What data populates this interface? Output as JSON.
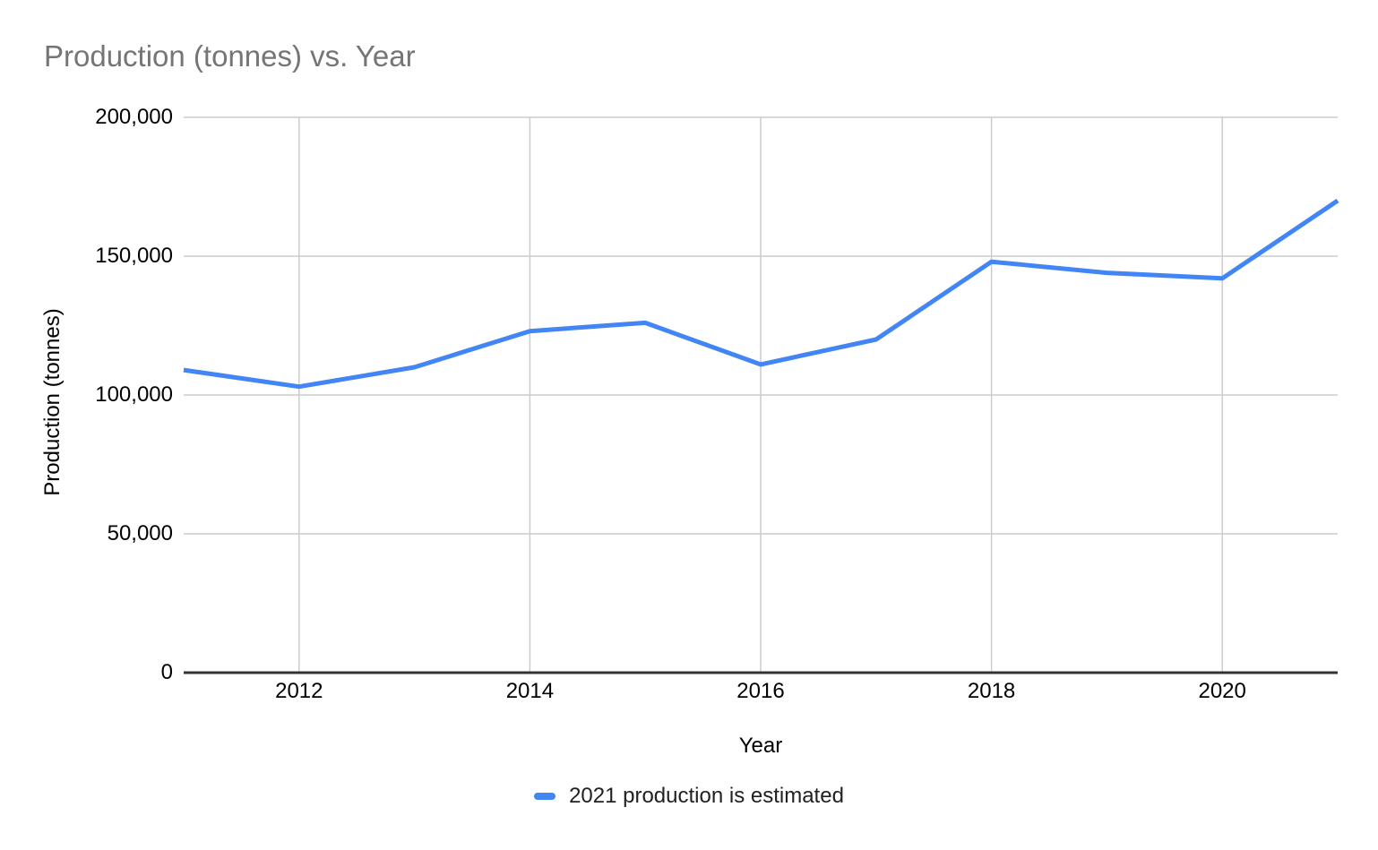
{
  "page": {
    "background": "#ffffff"
  },
  "chart_data": {
    "type": "line",
    "title": "Production (tonnes) vs. Year",
    "xlabel": "Year",
    "ylabel": "Production (tonnes)",
    "x": [
      2011,
      2012,
      2013,
      2014,
      2015,
      2016,
      2017,
      2018,
      2019,
      2020,
      2021
    ],
    "series": [
      {
        "name": "2021 production is estimated",
        "values": [
          109000,
          103000,
          110000,
          123000,
          126000,
          111000,
          120000,
          148000,
          144000,
          142000,
          170000
        ]
      }
    ],
    "xlim": [
      2011,
      2021
    ],
    "ylim": [
      0,
      200000
    ],
    "xticks": [
      2012,
      2014,
      2016,
      2018,
      2020
    ],
    "xtick_labels": [
      "2012",
      "2014",
      "2016",
      "2018",
      "2020"
    ],
    "yticks": [
      0,
      50000,
      100000,
      150000,
      200000
    ],
    "ytick_labels": [
      "0",
      "50,000",
      "100,000",
      "150,000",
      "200,000"
    ],
    "grid": true,
    "legend_position": "bottom",
    "colors": {
      "line": "#4285f4",
      "grid": "#cccccc",
      "axis": "#333333",
      "title": "#757575",
      "tick_text": "#000000"
    }
  }
}
